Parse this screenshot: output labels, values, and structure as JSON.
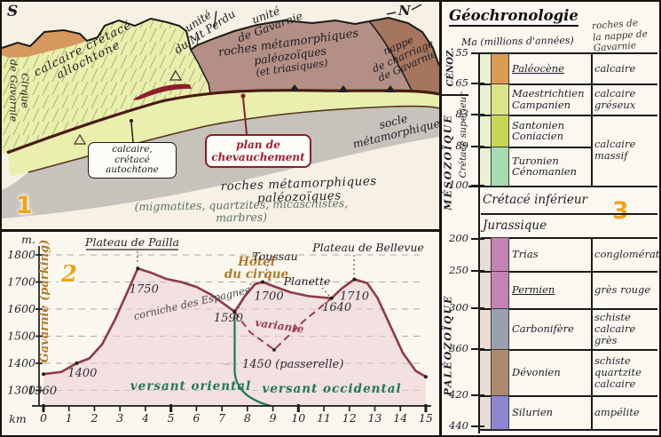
{
  "panel1": {
    "number": "1",
    "compass": {
      "south": "S",
      "north": "N"
    },
    "unit_left": [
      "unité",
      "du Mt Perdu"
    ],
    "unit_right": [
      "unité",
      "de Gavarnie"
    ],
    "slash": "/",
    "allochthon": [
      "calcaire crétacé",
      "allochtone"
    ],
    "cirque": [
      "Cirque",
      "de Gavarnie"
    ],
    "metamorphic": [
      "roches métamorphiques",
      "paléozoïques",
      "(et triasiques)"
    ],
    "nappe": [
      "nappe",
      "de charriage",
      "de Gavarnie"
    ],
    "socle": [
      "socle",
      "métamorphique"
    ],
    "box_autochthon": [
      "calcaire,",
      "crétacé",
      "autochtone"
    ],
    "box_thrust": [
      "plan de",
      "chevauchement"
    ],
    "basement": "roches métamorphiques paléozoïques",
    "basement_detail": "(migmatites, quartzites, micaschistes, marbres)"
  },
  "chart_data": {
    "type": "line",
    "panel_number": "2",
    "xlabel": "km",
    "ylabel": "m.",
    "xlim": [
      0,
      15
    ],
    "ylim": [
      1300,
      1800
    ],
    "x_ticks": [
      0,
      1,
      2,
      3,
      4,
      5,
      6,
      7,
      8,
      9,
      10,
      11,
      12,
      13,
      14,
      15
    ],
    "y_ticks": [
      1800,
      1700,
      1600,
      1500,
      1400,
      1300
    ],
    "grid": true,
    "left_label": "Gavarnie (parking)",
    "slope_label": "corniche des Espagnes",
    "divide_labels": [
      "versant oriental",
      "versant occidental"
    ],
    "profile": [
      {
        "km": 0,
        "m": 1360,
        "label": "1360"
      },
      {
        "km": 0.7,
        "m": 1368
      },
      {
        "km": 1.3,
        "m": 1400,
        "label": "1400"
      },
      {
        "km": 1.8,
        "m": 1418
      },
      {
        "km": 2.3,
        "m": 1470
      },
      {
        "km": 2.8,
        "m": 1560
      },
      {
        "km": 3.3,
        "m": 1665
      },
      {
        "km": 3.7,
        "m": 1750,
        "label": "1750",
        "place": [
          "Plateau de Pailla"
        ]
      },
      {
        "km": 4.2,
        "m": 1735
      },
      {
        "km": 4.8,
        "m": 1712
      },
      {
        "km": 5.4,
        "m": 1700
      },
      {
        "km": 6,
        "m": 1682
      },
      {
        "km": 6.6,
        "m": 1652
      },
      {
        "km": 7.1,
        "m": 1618
      },
      {
        "km": 7.5,
        "m": 1590,
        "label": "1590",
        "place": [
          "Hôtel",
          "du cirque"
        ]
      },
      {
        "km": 7.9,
        "m": 1648
      },
      {
        "km": 8.3,
        "m": 1692
      },
      {
        "km": 8.6,
        "m": 1700,
        "label": "1700",
        "place": [
          "Toussau"
        ]
      },
      {
        "km": 9.1,
        "m": 1682
      },
      {
        "km": 9.7,
        "m": 1662
      },
      {
        "km": 10.4,
        "m": 1648
      },
      {
        "km": 11.3,
        "m": 1640,
        "label": "1640",
        "place": [
          "Planette"
        ]
      },
      {
        "km": 11.7,
        "m": 1676
      },
      {
        "km": 12.2,
        "m": 1710,
        "label": "1710",
        "place": [
          "Plateau de Bellevue"
        ]
      },
      {
        "km": 12.7,
        "m": 1696
      },
      {
        "km": 13.1,
        "m": 1642
      },
      {
        "km": 13.6,
        "m": 1540
      },
      {
        "km": 14.1,
        "m": 1438
      },
      {
        "km": 14.6,
        "m": 1372
      },
      {
        "km": 15,
        "m": 1350
      }
    ],
    "variante": {
      "label": "variante",
      "note": "1450 (passerelle)",
      "points": [
        {
          "km": 7.5,
          "m": 1590
        },
        {
          "km": 8.1,
          "m": 1515
        },
        {
          "km": 9.05,
          "m": 1450
        },
        {
          "km": 10.2,
          "m": 1555
        },
        {
          "km": 11.3,
          "m": 1640
        }
      ]
    }
  },
  "panel3": {
    "number": "3",
    "title": "Géochronologie",
    "axis_label": "Ma (millions d'années)",
    "right_header": [
      "roches de",
      "la nappe de",
      "Gavarnie"
    ],
    "eras": {
      "cenozoic": "CÉNOZ.",
      "mesozoic": "MÉSOZOÏQUE",
      "cret_sup": "Crétacé supérieur",
      "paleozoic": "PALÉOZOÏQUE"
    },
    "ticks": [
      55,
      65,
      83,
      89,
      100,
      200,
      250,
      300,
      360,
      420,
      440
    ],
    "rows": [
      {
        "stage": [
          "Paléocène"
        ],
        "rock": [
          "calcaire"
        ],
        "color": "#dd9a55"
      },
      {
        "stage": [
          "Maestrichtien",
          "Campanien"
        ],
        "rock": [
          "calcaire",
          "gréseux"
        ],
        "color": "#dce48a"
      },
      {
        "stage": [
          "Santonien",
          "Coniacien"
        ],
        "rock": [
          "calcaire",
          "massif"
        ],
        "color": "#c8d656",
        "rock_rowspan": 2
      },
      {
        "stage": [
          "Turonien",
          "Cénomanien"
        ],
        "rock": null,
        "color": "#a8dcb0"
      },
      {
        "stage": [
          "Crétacé inférieur"
        ],
        "full_width": true
      },
      {
        "stage": [
          "Jurassique"
        ],
        "full_width": true
      },
      {
        "stage": [
          "Trias"
        ],
        "rock": [
          "conglomérat"
        ],
        "color": "#c583b3"
      },
      {
        "stage": [
          "Permien"
        ],
        "rock": [
          "grès rouge"
        ],
        "color": "#c583b3"
      },
      {
        "stage": [
          "Carbonifère"
        ],
        "rock": [
          "schiste",
          "calcaire",
          "grès"
        ],
        "color": "#9aa0ab"
      },
      {
        "stage": [
          "Dévonien"
        ],
        "rock": [
          "schiste",
          "quartzite",
          "calcaire"
        ],
        "color": "#ad8a6e"
      },
      {
        "stage": [
          "Silurien"
        ],
        "rock": [
          "ampélite"
        ],
        "color": "#8d85cf"
      }
    ]
  }
}
